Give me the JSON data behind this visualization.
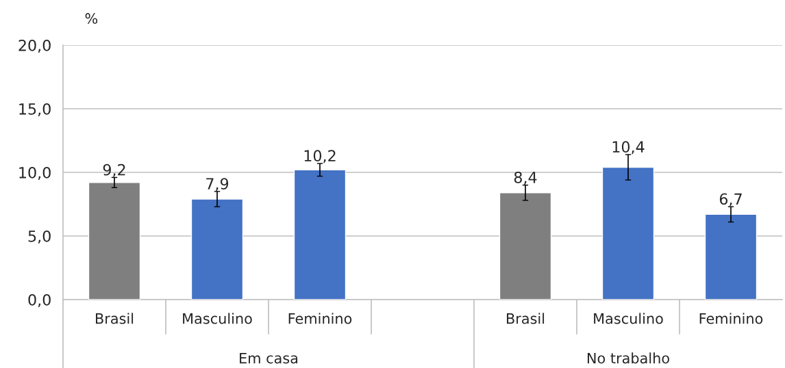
{
  "chart_data": {
    "type": "bar",
    "ylabel": "%",
    "categories": [
      "Brasil",
      "Masculino",
      "Feminino",
      null,
      "Brasil",
      "Masculino",
      "Feminino"
    ],
    "values": [
      9.2,
      7.9,
      10.2,
      null,
      8.4,
      10.4,
      6.7
    ],
    "colors": [
      "#7f7f7f",
      "#4472c4",
      "#4472c4",
      "#4472c4",
      "#7f7f7f",
      "#4472c4",
      "#4472c4"
    ],
    "errors": [
      0.4,
      0.6,
      0.5,
      null,
      0.6,
      1.0,
      0.6
    ],
    "value_labels": [
      "9,2",
      "7,9",
      "10,2",
      null,
      "8,4",
      "10,4",
      "6,7"
    ],
    "ylim": [
      0,
      20
    ],
    "yticks": [
      {
        "value": 0,
        "label": "0,0"
      },
      {
        "value": 5,
        "label": "5,0"
      },
      {
        "value": 10,
        "label": "10,0"
      },
      {
        "value": 15,
        "label": "15,0"
      },
      {
        "value": 20,
        "label": "20,0"
      }
    ],
    "grid": "y",
    "legend": false,
    "annotations": [
      "Em casa",
      "No trabalho"
    ]
  }
}
